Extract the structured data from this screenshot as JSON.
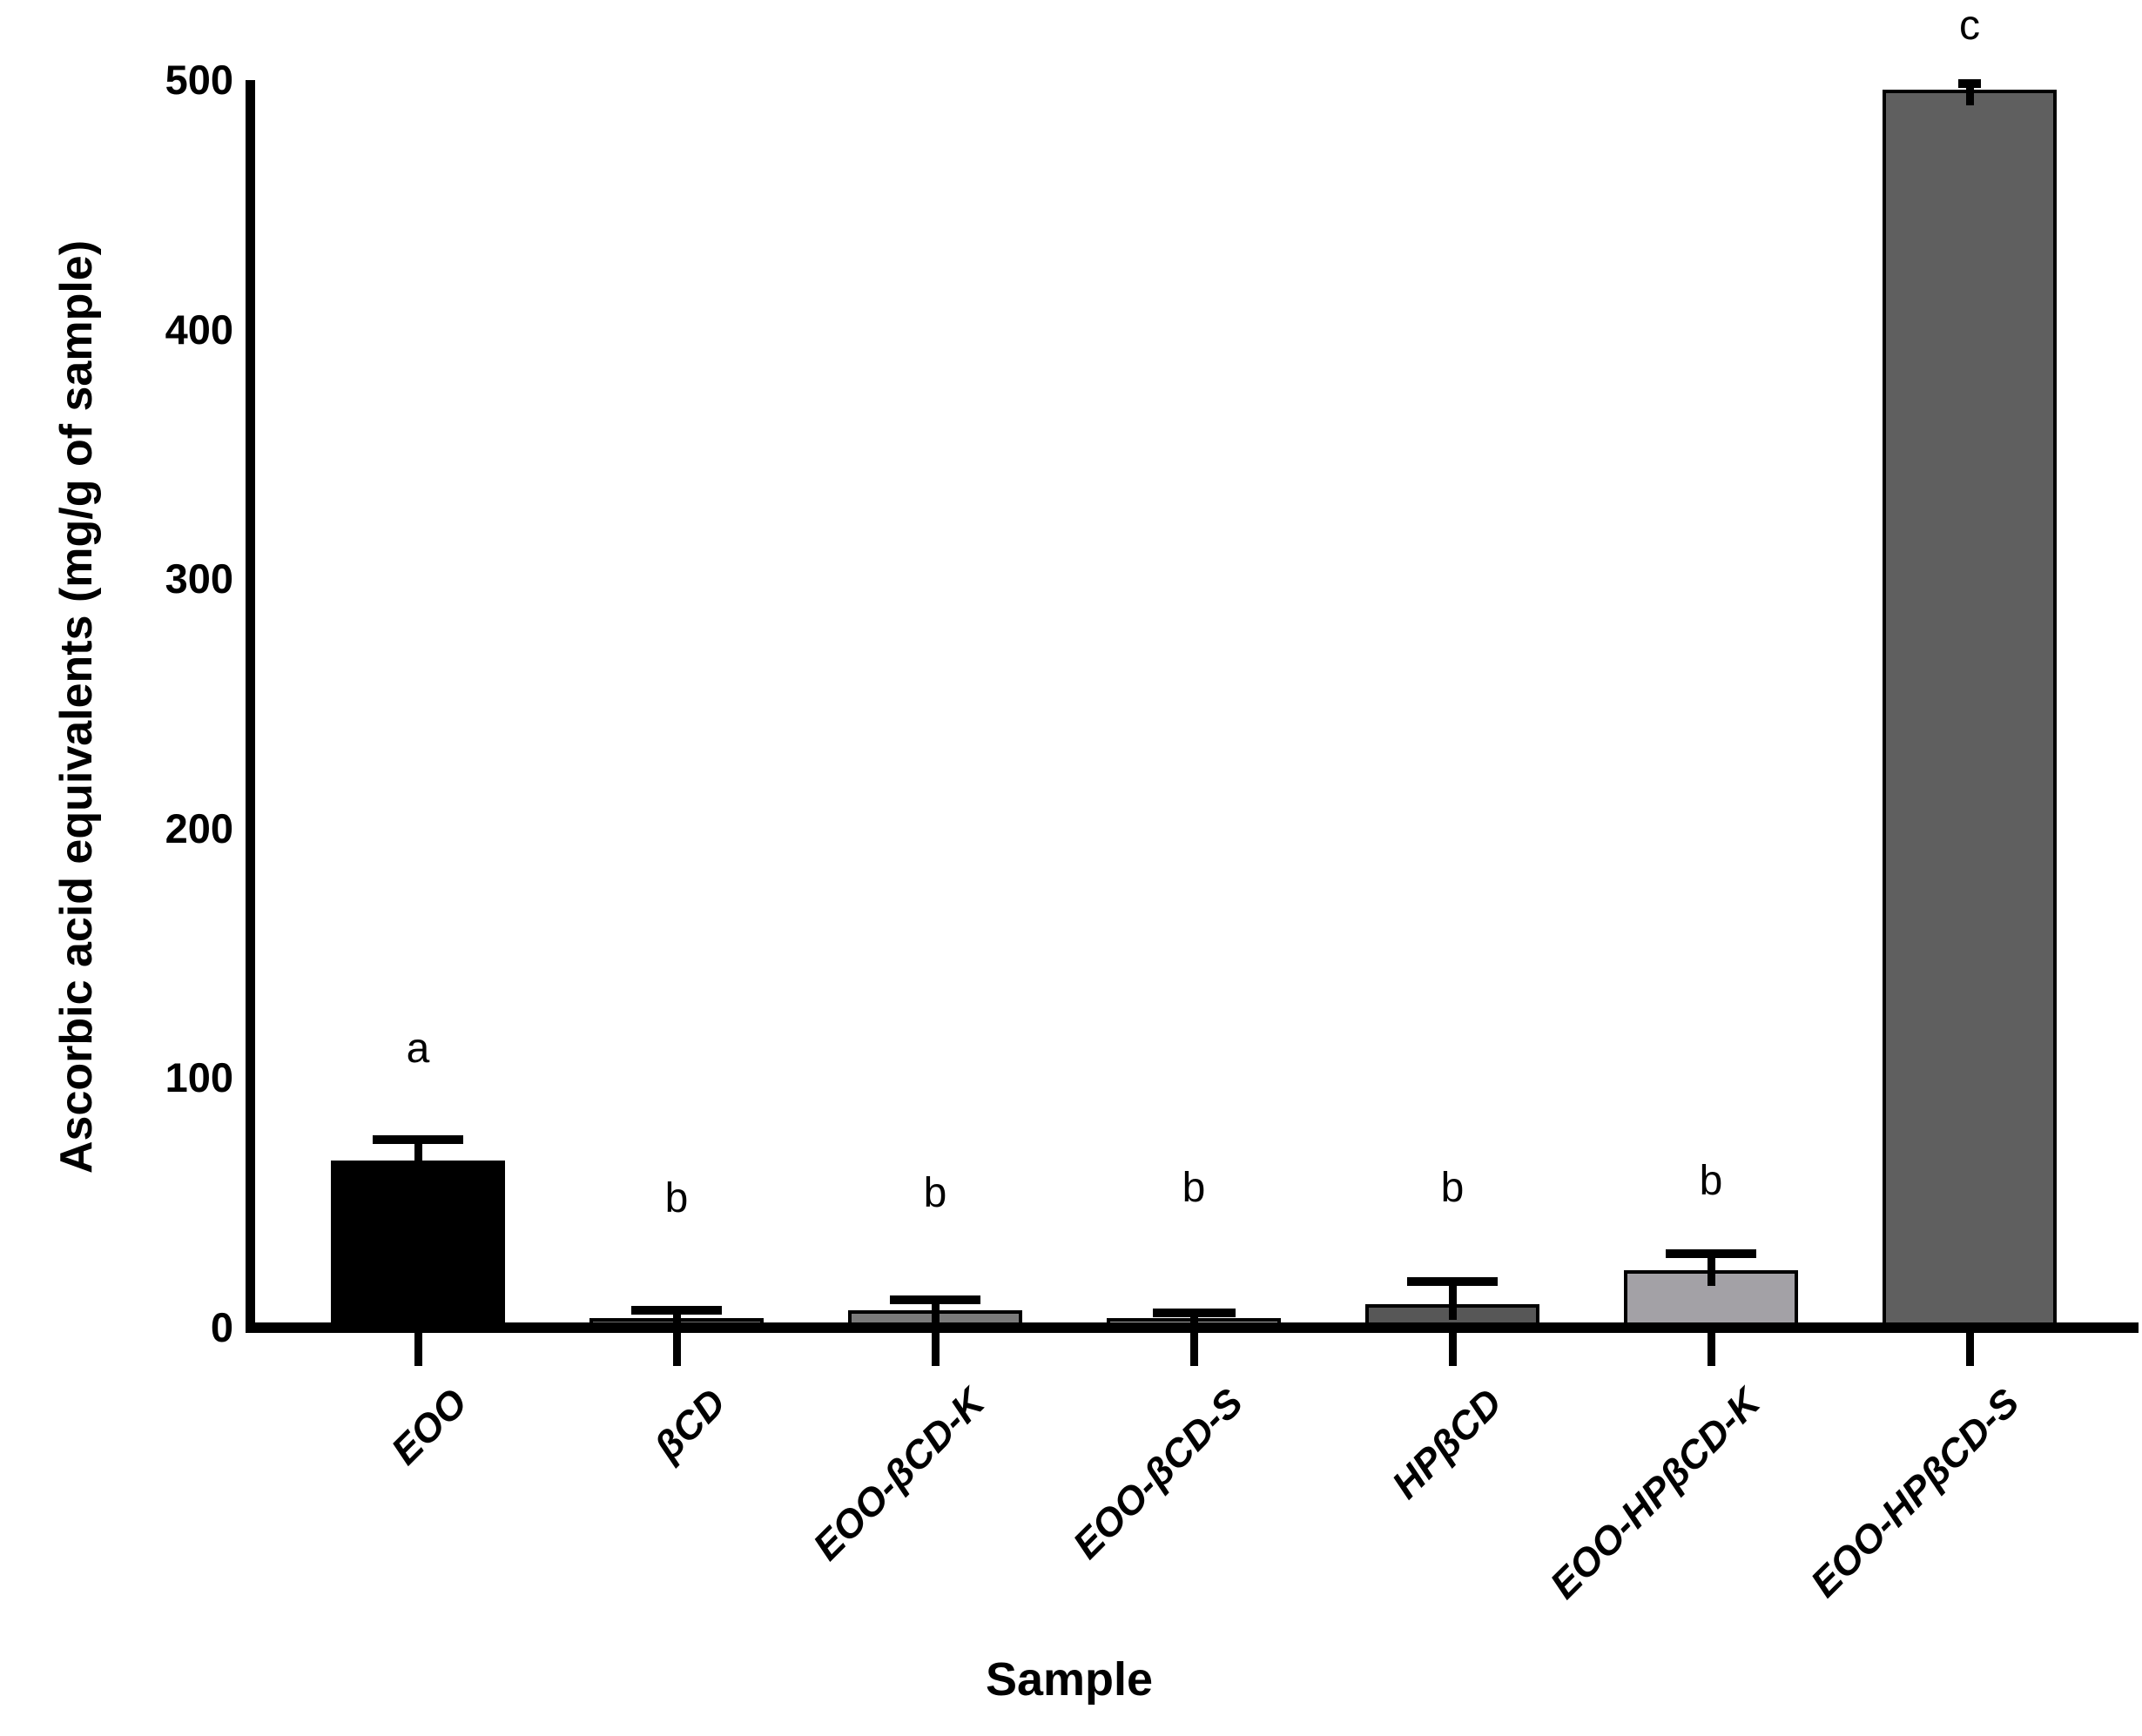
{
  "chart_data": {
    "type": "bar",
    "title": "",
    "xlabel": "Sample",
    "ylabel": "Ascorbic acid equivalents (mg/g of sample)",
    "ylim": [
      0,
      500
    ],
    "yticks": [
      0,
      100,
      200,
      300,
      400,
      500
    ],
    "grid": false,
    "legend": "none",
    "background": "#ffffff",
    "axis_color": "#000000",
    "text_color": "#000000",
    "categories": [
      "EOO",
      "βCD",
      "EOO-βCD-K",
      "EOO-βCD-S",
      "HPβCD",
      "EOO-HPβCD-K",
      "EOO-HPβCD-S"
    ],
    "values": [
      67,
      4,
      7,
      4,
      9.5,
      23,
      496
    ],
    "errors_upper": [
      8.5,
      3,
      4,
      2,
      9,
      6.5,
      2.5
    ],
    "sig_letters": [
      "a",
      "b",
      "b",
      "b",
      "b",
      "b",
      "c"
    ],
    "sig_letter_y": [
      111,
      51,
      53,
      55,
      55,
      58,
      521
    ],
    "bar_colors": [
      "#000000",
      "#6e6e6e",
      "#7b7b7b",
      "#a9a9a9",
      "#575757",
      "#a3a1a6",
      "#5f5f5f"
    ],
    "error_cap_widths": [
      104,
      104,
      104,
      95,
      104,
      104,
      26
    ]
  }
}
